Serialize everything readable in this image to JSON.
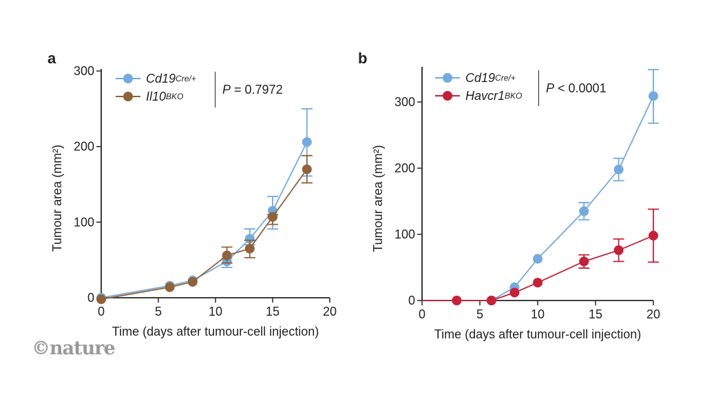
{
  "logo": "©nature",
  "colors": {
    "blue": "#74aadd",
    "brown": "#8f6239",
    "red": "#c4213a",
    "axis": "#222222"
  },
  "chart_data": [
    {
      "panel": "a",
      "type": "line",
      "xlabel": "Time (days after tumour-cell injection)",
      "ylabel": "Tumour area (mm²)",
      "xlim": [
        0,
        20
      ],
      "ylim": [
        0,
        300
      ],
      "xticks": [
        0,
        5,
        10,
        15,
        20
      ],
      "yticks": [
        0,
        100,
        200,
        300
      ],
      "annotation": {
        "italic": "P",
        "text": "= 0.7972"
      },
      "legend_placement": "top-left",
      "series": [
        {
          "name": "Cd19",
          "sup": "Cre/+",
          "color": "blue",
          "x": [
            0,
            6,
            8,
            11,
            13,
            15,
            18
          ],
          "y": [
            0,
            16,
            23,
            48,
            78,
            115,
            206
          ],
          "err_low": [
            0,
            16,
            23,
            40,
            70,
            91,
            161
          ],
          "err_high": [
            0,
            16,
            23,
            52,
            91,
            134,
            250
          ]
        },
        {
          "name": "Il10",
          "sup": "BKO",
          "color": "brown",
          "x": [
            0,
            6,
            8,
            11,
            13,
            15,
            18
          ],
          "y": [
            -2,
            14,
            21,
            56,
            65,
            107,
            170
          ],
          "err_low": [
            -2,
            14,
            21,
            46,
            53,
            97,
            152
          ],
          "err_high": [
            -2,
            14,
            21,
            67,
            76,
            110,
            188
          ]
        }
      ]
    },
    {
      "panel": "b",
      "type": "line",
      "xlabel": "Time (days after tumour-cell injection)",
      "ylabel": "Tumour area (mm²)",
      "xlim": [
        0,
        20
      ],
      "ylim": [
        0,
        350
      ],
      "xticks": [
        0,
        5,
        10,
        15,
        20
      ],
      "yticks": [
        0,
        100,
        200,
        300
      ],
      "annotation": {
        "italic": "P",
        "text": "< 0.0001"
      },
      "legend_placement": "top-left",
      "series": [
        {
          "name": "Cd19",
          "sup": "Cre/+",
          "color": "blue",
          "x": [
            6,
            8,
            10,
            14,
            17,
            20
          ],
          "y": [
            0,
            20,
            63,
            135,
            198,
            309
          ],
          "err_low": [
            0,
            20,
            63,
            122,
            181,
            268
          ],
          "err_high": [
            0,
            20,
            63,
            148,
            215,
            349
          ]
        },
        {
          "name": "Havcr1",
          "sup": "BKO",
          "color": "red",
          "line_from_x": 0,
          "x": [
            3,
            6,
            8,
            10,
            14,
            17,
            20
          ],
          "y": [
            0,
            0,
            12,
            27,
            59,
            76,
            98
          ],
          "err_low": [
            0,
            0,
            12,
            27,
            49,
            59,
            58
          ],
          "err_high": [
            0,
            0,
            12,
            27,
            69,
            93,
            138
          ]
        }
      ]
    }
  ]
}
